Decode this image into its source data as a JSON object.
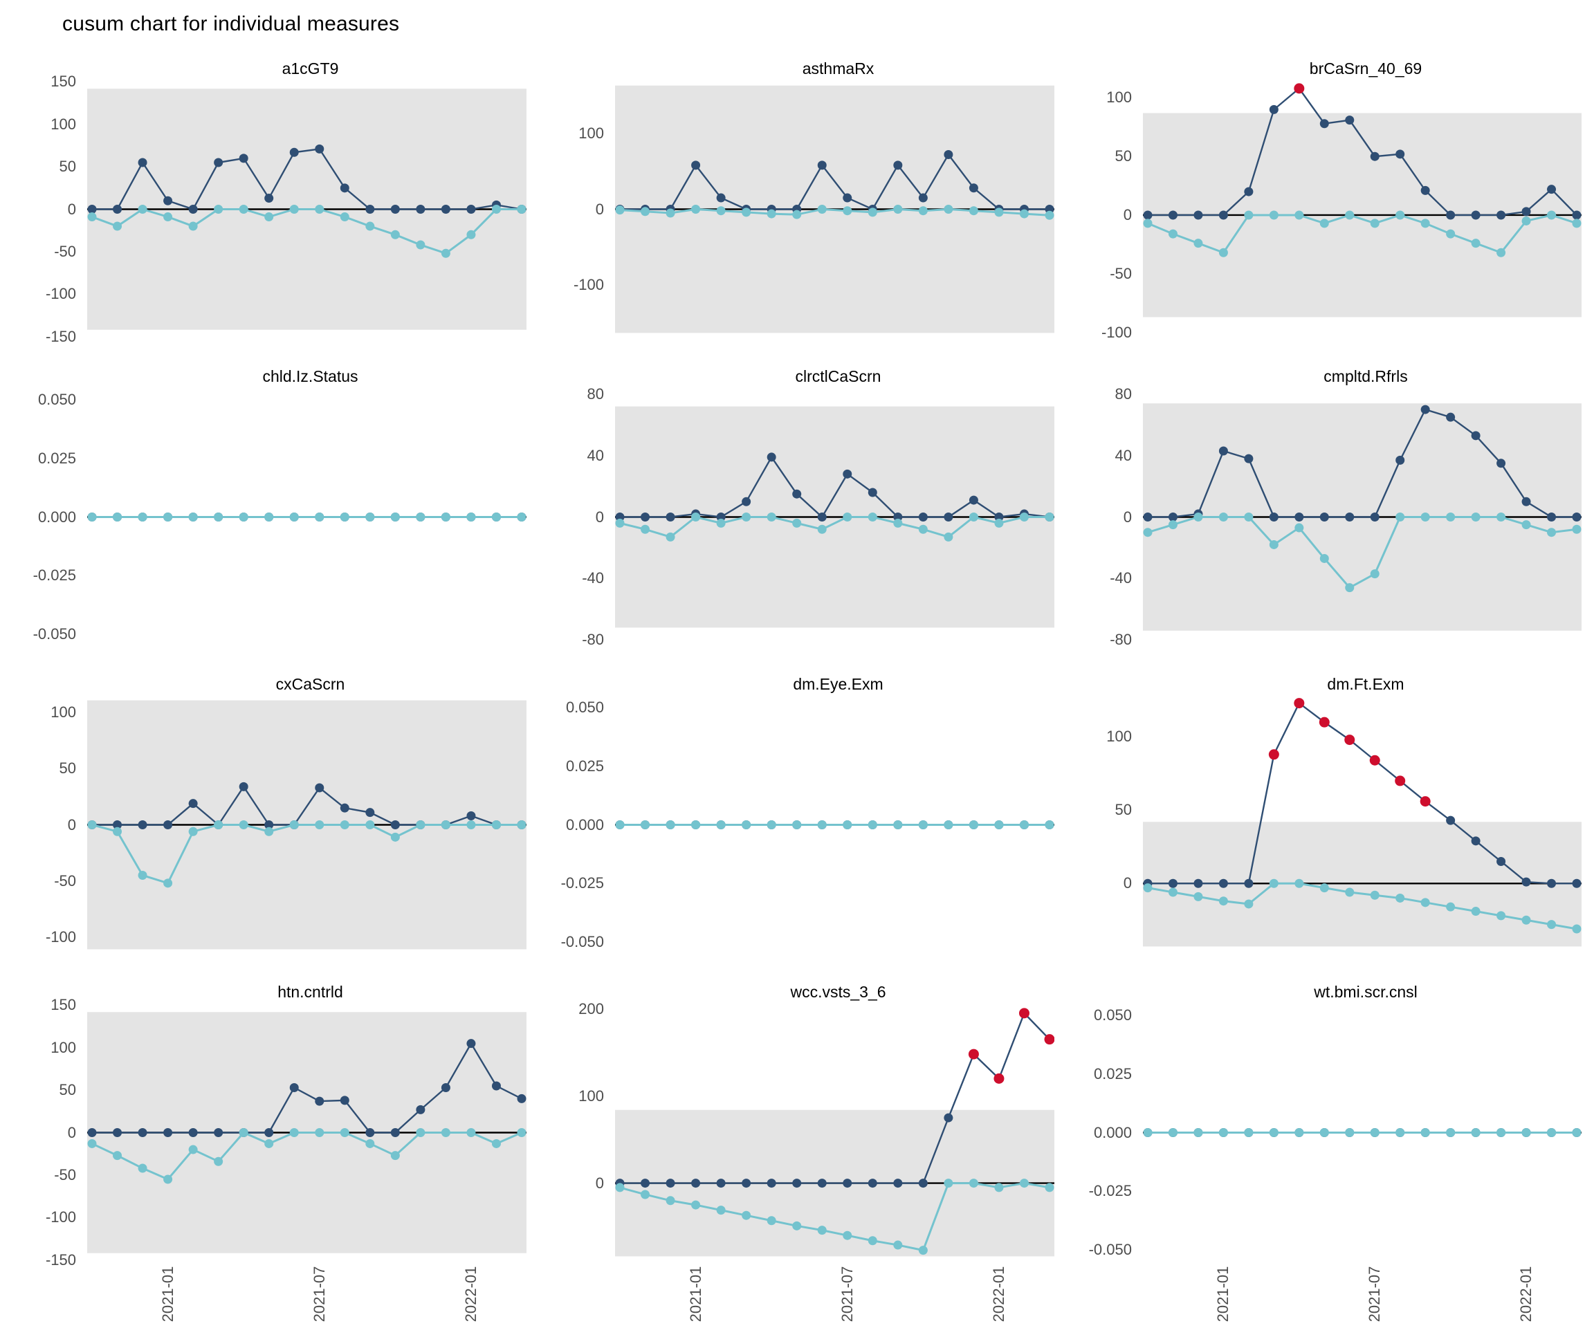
{
  "title": "cusum chart for individual measures",
  "colors": {
    "upper_series": "#2f4e73",
    "lower_series": "#74c3ce",
    "signal_point": "#ce0e2d",
    "zero_line": "#000000",
    "control_band": "#e4e4e4",
    "axis_text": "#4d4d4d",
    "facet_title_text": "#000000"
  },
  "x_axis": {
    "n_points": 18,
    "categories": [
      "2020-10",
      "2020-11",
      "2020-12",
      "2021-01",
      "2021-02",
      "2021-03",
      "2021-04",
      "2021-05",
      "2021-06",
      "2021-07",
      "2021-08",
      "2021-09",
      "2021-10",
      "2021-11",
      "2021-12",
      "2022-01",
      "2022-02",
      "2022-03"
    ],
    "tick_labels": [
      "2021-01",
      "2021-07",
      "2022-01"
    ],
    "tick_indices": [
      3,
      9,
      15
    ]
  },
  "legend": {
    "visible": false
  },
  "chart_data": [
    {
      "type": "line",
      "title": "a1cGT9",
      "ylim": [
        -152,
        152
      ],
      "band": [
        -142,
        142
      ],
      "yticks": [
        {
          "label": "150",
          "value": 150
        },
        {
          "label": "100",
          "value": 100
        },
        {
          "label": "50",
          "value": 50
        },
        {
          "label": "0",
          "value": 0
        },
        {
          "label": "-50",
          "value": -50
        },
        {
          "label": "-100",
          "value": -100
        },
        {
          "label": "-150",
          "value": -150
        }
      ],
      "series": [
        {
          "name": "cusum_upper",
          "values": [
            0,
            0,
            55,
            10,
            0,
            55,
            60,
            13,
            67,
            71,
            25,
            0,
            0,
            0,
            0,
            0,
            5,
            0
          ],
          "signal_indices": []
        },
        {
          "name": "cusum_lower",
          "values": [
            -9,
            -20,
            0,
            -9,
            -20,
            0,
            0,
            -9,
            0,
            0,
            -9,
            -20,
            -30,
            -42,
            -52,
            -30,
            0,
            0
          ]
        }
      ]
    },
    {
      "type": "line",
      "title": "asthmaRx",
      "ylim": [
        -170,
        170
      ],
      "band": [
        -163,
        163
      ],
      "yticks": [
        {
          "label": "100",
          "value": 100
        },
        {
          "label": "0",
          "value": 0
        },
        {
          "label": "-100",
          "value": -100
        }
      ],
      "series": [
        {
          "name": "cusum_upper",
          "values": [
            0,
            0,
            0,
            58,
            15,
            0,
            0,
            0,
            58,
            15,
            0,
            58,
            15,
            72,
            28,
            0,
            0,
            0
          ],
          "signal_indices": []
        },
        {
          "name": "cusum_lower",
          "values": [
            -1,
            -3,
            -5,
            0,
            -2,
            -4,
            -6,
            -7,
            0,
            -2,
            -4,
            0,
            -2,
            0,
            -2,
            -4,
            -6,
            -8
          ]
        }
      ]
    },
    {
      "type": "line",
      "title": "brCaSrn_40_69",
      "ylim": [
        -105,
        115
      ],
      "band": [
        -87,
        87
      ],
      "yticks": [
        {
          "label": "100",
          "value": 100
        },
        {
          "label": "50",
          "value": 50
        },
        {
          "label": "0",
          "value": 0
        },
        {
          "label": "-50",
          "value": -50
        },
        {
          "label": "-100",
          "value": -100
        }
      ],
      "series": [
        {
          "name": "cusum_upper",
          "values": [
            0,
            0,
            0,
            0,
            20,
            90,
            108,
            78,
            81,
            50,
            52,
            21,
            0,
            0,
            0,
            3,
            22,
            0
          ],
          "signal_indices": [
            6
          ]
        },
        {
          "name": "cusum_lower",
          "values": [
            -7,
            -16,
            -24,
            -32,
            0,
            0,
            0,
            -7,
            0,
            -7,
            0,
            -7,
            -16,
            -24,
            -32,
            -5,
            0,
            -7
          ]
        }
      ]
    },
    {
      "type": "line",
      "title": "chld.Iz.Status",
      "ylim": [
        -0.055,
        0.055
      ],
      "band": null,
      "yticks": [
        {
          "label": "0.050",
          "value": 0.05
        },
        {
          "label": "0.025",
          "value": 0.025
        },
        {
          "label": "0.000",
          "value": 0
        },
        {
          "label": "-0.025",
          "value": -0.025
        },
        {
          "label": "-0.050",
          "value": -0.05
        }
      ],
      "series": [
        {
          "name": "cusum_upper",
          "values": [
            0,
            0,
            0,
            0,
            0,
            0,
            0,
            0,
            0,
            0,
            0,
            0,
            0,
            0,
            0,
            0,
            0,
            0
          ],
          "signal_indices": []
        },
        {
          "name": "cusum_lower",
          "values": [
            0,
            0,
            0,
            0,
            0,
            0,
            0,
            0,
            0,
            0,
            0,
            0,
            0,
            0,
            0,
            0,
            0,
            0
          ]
        }
      ]
    },
    {
      "type": "line",
      "title": "clrctlCaScrn",
      "ylim": [
        -84,
        84
      ],
      "band": [
        -72,
        72
      ],
      "yticks": [
        {
          "label": "80",
          "value": 80
        },
        {
          "label": "40",
          "value": 40
        },
        {
          "label": "0",
          "value": 0
        },
        {
          "label": "-40",
          "value": -40
        },
        {
          "label": "-80",
          "value": -80
        }
      ],
      "series": [
        {
          "name": "cusum_upper",
          "values": [
            0,
            0,
            0,
            2,
            0,
            10,
            39,
            15,
            0,
            28,
            16,
            0,
            0,
            0,
            11,
            0,
            2,
            0
          ],
          "signal_indices": []
        },
        {
          "name": "cusum_lower",
          "values": [
            -4,
            -8,
            -13,
            0,
            -4,
            0,
            0,
            -4,
            -8,
            0,
            0,
            -4,
            -8,
            -13,
            0,
            -4,
            0,
            0
          ]
        }
      ]
    },
    {
      "type": "line",
      "title": "cmpltd.Rfrls",
      "ylim": [
        -84,
        84
      ],
      "band": [
        -74,
        74
      ],
      "yticks": [
        {
          "label": "80",
          "value": 80
        },
        {
          "label": "40",
          "value": 40
        },
        {
          "label": "0",
          "value": 0
        },
        {
          "label": "-40",
          "value": -40
        },
        {
          "label": "-80",
          "value": -80
        }
      ],
      "series": [
        {
          "name": "cusum_upper",
          "values": [
            0,
            0,
            2,
            43,
            38,
            0,
            0,
            0,
            0,
            0,
            37,
            70,
            65,
            53,
            35,
            10,
            0,
            0
          ],
          "signal_indices": []
        },
        {
          "name": "cusum_lower",
          "values": [
            -10,
            -5,
            0,
            0,
            0,
            -18,
            -7,
            -27,
            -46,
            -37,
            0,
            0,
            0,
            0,
            0,
            -5,
            -10,
            -8
          ]
        }
      ]
    },
    {
      "type": "line",
      "title": "cxCaScrn",
      "ylim": [
        -115,
        115
      ],
      "band": [
        -111,
        111
      ],
      "yticks": [
        {
          "label": "100",
          "value": 100
        },
        {
          "label": "50",
          "value": 50
        },
        {
          "label": "0",
          "value": 0
        },
        {
          "label": "-50",
          "value": -50
        },
        {
          "label": "-100",
          "value": -100
        }
      ],
      "series": [
        {
          "name": "cusum_upper",
          "values": [
            0,
            0,
            0,
            0,
            19,
            0,
            34,
            0,
            0,
            33,
            15,
            11,
            0,
            0,
            0,
            8,
            0,
            0
          ],
          "signal_indices": []
        },
        {
          "name": "cusum_lower",
          "values": [
            0,
            -6,
            -45,
            -52,
            -6,
            0,
            0,
            -6,
            0,
            0,
            0,
            0,
            -11,
            0,
            0,
            0,
            0,
            0
          ]
        }
      ]
    },
    {
      "type": "line",
      "title": "dm.Eye.Exm",
      "ylim": [
        -0.055,
        0.055
      ],
      "band": null,
      "yticks": [
        {
          "label": "0.050",
          "value": 0.05
        },
        {
          "label": "0.025",
          "value": 0.025
        },
        {
          "label": "0.000",
          "value": 0
        },
        {
          "label": "-0.025",
          "value": -0.025
        },
        {
          "label": "-0.050",
          "value": -0.05
        }
      ],
      "series": [
        {
          "name": "cusum_upper",
          "values": [
            0,
            0,
            0,
            0,
            0,
            0,
            0,
            0,
            0,
            0,
            0,
            0,
            0,
            0,
            0,
            0,
            0,
            0
          ],
          "signal_indices": []
        },
        {
          "name": "cusum_lower",
          "values": [
            0,
            0,
            0,
            0,
            0,
            0,
            0,
            0,
            0,
            0,
            0,
            0,
            0,
            0,
            0,
            0,
            0,
            0
          ]
        }
      ]
    },
    {
      "type": "line",
      "title": "dm.Ft.Exm",
      "ylim": [
        -48,
        128
      ],
      "band": [
        -43,
        42
      ],
      "yticks": [
        {
          "label": "100",
          "value": 100
        },
        {
          "label": "50",
          "value": 50
        },
        {
          "label": "0",
          "value": 0
        }
      ],
      "series": [
        {
          "name": "cusum_upper",
          "values": [
            0,
            0,
            0,
            0,
            0,
            88,
            123,
            110,
            98,
            84,
            70,
            56,
            43,
            29,
            15,
            1,
            0,
            0
          ],
          "signal_indices": [
            5,
            6,
            7,
            8,
            9,
            10,
            11
          ]
        },
        {
          "name": "cusum_lower",
          "values": [
            -3,
            -6,
            -9,
            -12,
            -14,
            0,
            0,
            -3,
            -6,
            -8,
            -10,
            -13,
            -16,
            -19,
            -22,
            -25,
            -28,
            -31
          ]
        }
      ]
    },
    {
      "type": "line",
      "title": "htn.cntrld",
      "ylim": [
        -152,
        152
      ],
      "band": [
        -142,
        142
      ],
      "yticks": [
        {
          "label": "150",
          "value": 150
        },
        {
          "label": "100",
          "value": 100
        },
        {
          "label": "50",
          "value": 50
        },
        {
          "label": "0",
          "value": 0
        },
        {
          "label": "-50",
          "value": -50
        },
        {
          "label": "-100",
          "value": -100
        },
        {
          "label": "-150",
          "value": -150
        }
      ],
      "series": [
        {
          "name": "cusum_upper",
          "values": [
            0,
            0,
            0,
            0,
            0,
            0,
            0,
            0,
            53,
            37,
            38,
            0,
            0,
            27,
            53,
            105,
            55,
            40
          ],
          "signal_indices": []
        },
        {
          "name": "cusum_lower",
          "values": [
            -13,
            -27,
            -42,
            -55,
            -20,
            -34,
            0,
            -13,
            0,
            0,
            0,
            -13,
            -27,
            0,
            0,
            0,
            -13,
            0
          ]
        }
      ]
    },
    {
      "type": "line",
      "title": "wcc.vsts_3_6",
      "ylim": [
        -90,
        206
      ],
      "band": [
        -84,
        84
      ],
      "yticks": [
        {
          "label": "200",
          "value": 200
        },
        {
          "label": "100",
          "value": 100
        },
        {
          "label": "0",
          "value": 0
        }
      ],
      "series": [
        {
          "name": "cusum_upper",
          "values": [
            0,
            0,
            0,
            0,
            0,
            0,
            0,
            0,
            0,
            0,
            0,
            0,
            0,
            75,
            148,
            120,
            195,
            165
          ],
          "signal_indices": [
            14,
            15,
            16,
            17
          ]
        },
        {
          "name": "cusum_lower",
          "values": [
            -5,
            -13,
            -20,
            -25,
            -31,
            -37,
            -43,
            -49,
            -54,
            -60,
            -66,
            -71,
            -77,
            0,
            0,
            -5,
            0,
            -5
          ]
        }
      ]
    },
    {
      "type": "line",
      "title": "wt.bmi.scr.cnsl",
      "ylim": [
        -0.055,
        0.055
      ],
      "band": null,
      "yticks": [
        {
          "label": "0.050",
          "value": 0.05
        },
        {
          "label": "0.025",
          "value": 0.025
        },
        {
          "label": "0.000",
          "value": 0
        },
        {
          "label": "-0.025",
          "value": -0.025
        },
        {
          "label": "-0.050",
          "value": -0.05
        }
      ],
      "series": [
        {
          "name": "cusum_upper",
          "values": [
            0,
            0,
            0,
            0,
            0,
            0,
            0,
            0,
            0,
            0,
            0,
            0,
            0,
            0,
            0,
            0,
            0,
            0
          ],
          "signal_indices": []
        },
        {
          "name": "cusum_lower",
          "values": [
            0,
            0,
            0,
            0,
            0,
            0,
            0,
            0,
            0,
            0,
            0,
            0,
            0,
            0,
            0,
            0,
            0,
            0
          ]
        }
      ]
    }
  ]
}
